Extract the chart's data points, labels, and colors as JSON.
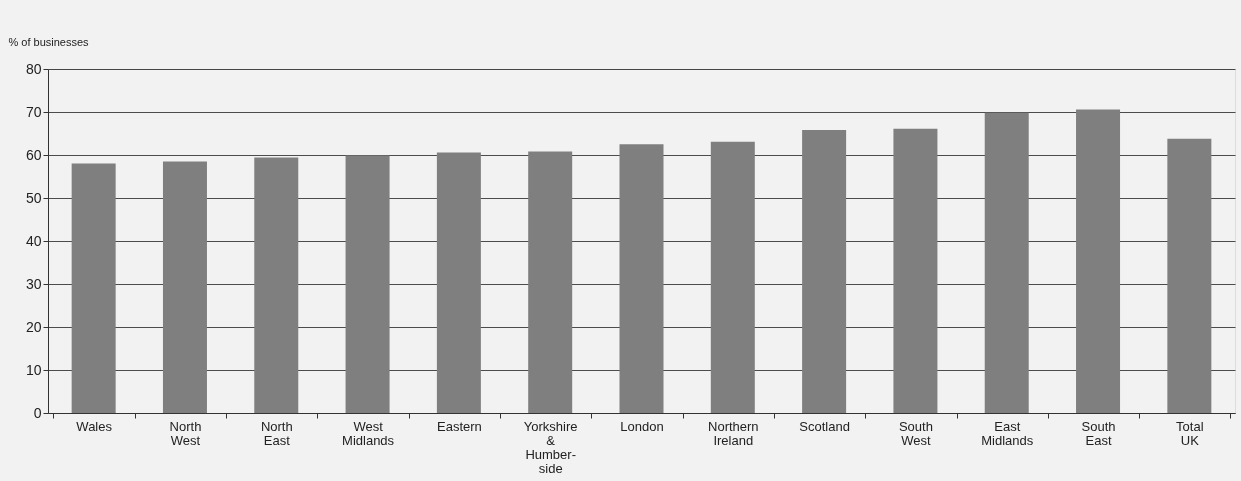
{
  "chart_data": {
    "type": "bar",
    "ylabel": "% of businesses",
    "categories": [
      "Wales",
      "North West",
      "North East",
      "West Midlands",
      "Eastern",
      "Yorkshire & Humber-side",
      "London",
      "Northern Ireland",
      "Scotland",
      "South West",
      "East Midlands",
      "South East",
      null,
      "Total UK"
    ],
    "values": [
      58,
      58.5,
      59.4,
      59.9,
      60.6,
      60.8,
      62.5,
      63.1,
      65.8,
      66.1,
      69.8,
      70.6,
      null,
      63.8
    ],
    "color": "#7f7f7f",
    "ylim": [
      0,
      80
    ],
    "yticks": [
      0,
      10,
      20,
      30,
      40,
      50,
      60,
      70,
      80
    ],
    "grid": "y"
  }
}
